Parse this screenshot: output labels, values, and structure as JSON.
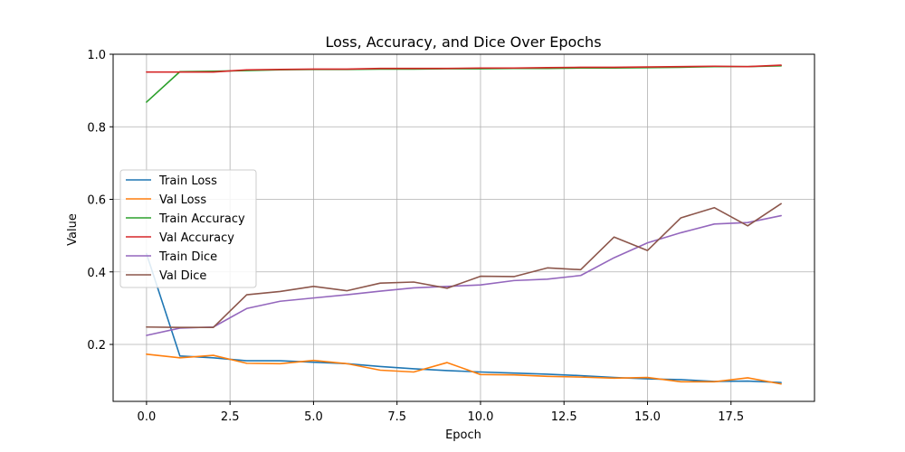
{
  "chart_data": {
    "type": "line",
    "title": "Loss, Accuracy, and Dice Over Epochs",
    "xlabel": "Epoch",
    "ylabel": "Value",
    "xlim": [
      -1.0,
      20.0
    ],
    "ylim": [
      0.043,
      1.0
    ],
    "x_ticks": [
      0.0,
      2.5,
      5.0,
      7.5,
      10.0,
      12.5,
      15.0,
      17.5
    ],
    "x_tick_labels": [
      "0.0",
      "2.5",
      "5.0",
      "7.5",
      "10.0",
      "12.5",
      "15.0",
      "17.5"
    ],
    "y_ticks": [
      0.2,
      0.4,
      0.6,
      0.8,
      1.0
    ],
    "y_tick_labels": [
      "0.2",
      "0.4",
      "0.6",
      "0.8",
      "1.0"
    ],
    "grid": true,
    "legend_position": "center-left",
    "x": [
      0,
      1,
      2,
      3,
      4,
      5,
      6,
      7,
      8,
      9,
      10,
      11,
      12,
      13,
      14,
      15,
      16,
      17,
      18,
      19
    ],
    "series": [
      {
        "name": "Train Loss",
        "color": "#1f77b4",
        "values": [
          0.45,
          0.168,
          0.163,
          0.155,
          0.155,
          0.151,
          0.147,
          0.139,
          0.133,
          0.128,
          0.124,
          0.121,
          0.118,
          0.114,
          0.109,
          0.105,
          0.103,
          0.098,
          0.099,
          0.095
        ]
      },
      {
        "name": "Val Loss",
        "color": "#ff7f0e",
        "values": [
          0.173,
          0.163,
          0.17,
          0.148,
          0.147,
          0.156,
          0.147,
          0.129,
          0.124,
          0.15,
          0.117,
          0.116,
          0.112,
          0.11,
          0.107,
          0.109,
          0.097,
          0.097,
          0.108,
          0.091
        ]
      },
      {
        "name": "Train Accuracy",
        "color": "#2ca02c",
        "values": [
          0.868,
          0.952,
          0.953,
          0.955,
          0.957,
          0.958,
          0.958,
          0.959,
          0.959,
          0.96,
          0.96,
          0.961,
          0.961,
          0.962,
          0.962,
          0.963,
          0.964,
          0.966,
          0.966,
          0.968
        ]
      },
      {
        "name": "Val Accuracy",
        "color": "#d62728",
        "values": [
          0.951,
          0.951,
          0.951,
          0.957,
          0.958,
          0.959,
          0.959,
          0.961,
          0.961,
          0.961,
          0.962,
          0.962,
          0.963,
          0.964,
          0.964,
          0.965,
          0.966,
          0.967,
          0.966,
          0.97
        ]
      },
      {
        "name": "Train Dice",
        "color": "#9467bd",
        "values": [
          0.225,
          0.245,
          0.248,
          0.299,
          0.319,
          0.328,
          0.337,
          0.347,
          0.356,
          0.36,
          0.364,
          0.376,
          0.38,
          0.39,
          0.439,
          0.48,
          0.508,
          0.532,
          0.536,
          0.555
        ]
      },
      {
        "name": "Val Dice",
        "color": "#8c564b",
        "values": [
          0.248,
          0.247,
          0.247,
          0.337,
          0.346,
          0.36,
          0.348,
          0.369,
          0.372,
          0.355,
          0.388,
          0.387,
          0.411,
          0.406,
          0.496,
          0.459,
          0.549,
          0.577,
          0.527,
          0.588
        ]
      }
    ]
  }
}
